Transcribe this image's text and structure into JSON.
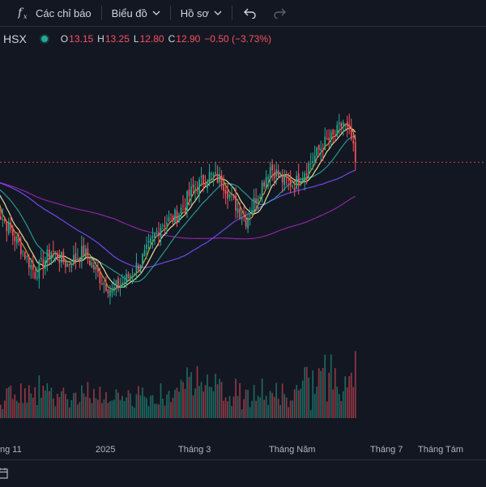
{
  "toolbar": {
    "indicators_label": "Các chỉ báo",
    "chart_type_label": "Biểu đồ",
    "profile_label": "Hồ sơ"
  },
  "legend": {
    "symbol": "HSX",
    "open_label": "O",
    "open": "13.15",
    "high_label": "H",
    "high": "13.25",
    "low_label": "L",
    "low": "12.80",
    "close_label": "C",
    "close": "12.90",
    "change": "−0.50 (−3.73%)"
  },
  "x_axis": {
    "labels": [
      "ng 11",
      "2025",
      "Tháng 3",
      "Tháng Năm",
      "Tháng 7",
      "Tháng Tám"
    ]
  },
  "colors": {
    "background": "#131722",
    "up": "#22ab94",
    "down": "#f7525f",
    "ma_fast": "#f0a830",
    "ma_mid": "#fdf5a6",
    "ma_slow": "#26a69a",
    "ma_long": "#7c4dff",
    "ma_longer": "#9c27b0"
  },
  "chart_data": {
    "type": "candlestick",
    "symbol": "HSX",
    "last": {
      "open": 13.15,
      "high": 13.25,
      "low": 12.8,
      "close": 12.9
    },
    "series_shape": "price falls from ~11.9 (Nov) to ~10.0 (Jan), rises to ~12.7 (Mar-Apr), dips to ~11.6 in Apr, climbs to ~13.8 peak in June, last close 12.90",
    "keypoints": [
      {
        "t": 0,
        "p": 11.9
      },
      {
        "t": 6,
        "p": 11.5
      },
      {
        "t": 14,
        "p": 10.9
      },
      {
        "t": 20,
        "p": 10.4
      },
      {
        "t": 28,
        "p": 10.9
      },
      {
        "t": 36,
        "p": 10.6
      },
      {
        "t": 44,
        "p": 10.9
      },
      {
        "t": 52,
        "p": 10.3
      },
      {
        "t": 58,
        "p": 10.0
      },
      {
        "t": 66,
        "p": 10.3
      },
      {
        "t": 74,
        "p": 10.8
      },
      {
        "t": 82,
        "p": 11.5
      },
      {
        "t": 90,
        "p": 11.7
      },
      {
        "t": 98,
        "p": 12.3
      },
      {
        "t": 106,
        "p": 12.6
      },
      {
        "t": 112,
        "p": 12.5
      },
      {
        "t": 118,
        "p": 12.0
      },
      {
        "t": 124,
        "p": 11.6
      },
      {
        "t": 130,
        "p": 12.2
      },
      {
        "t": 136,
        "p": 12.8
      },
      {
        "t": 142,
        "p": 12.5
      },
      {
        "t": 148,
        "p": 12.4
      },
      {
        "t": 156,
        "p": 12.9
      },
      {
        "t": 162,
        "p": 13.3
      },
      {
        "t": 168,
        "p": 13.5
      },
      {
        "t": 172,
        "p": 13.8
      },
      {
        "t": 176,
        "p": 13.4
      },
      {
        "t": 178,
        "p": 12.9
      }
    ]
  }
}
